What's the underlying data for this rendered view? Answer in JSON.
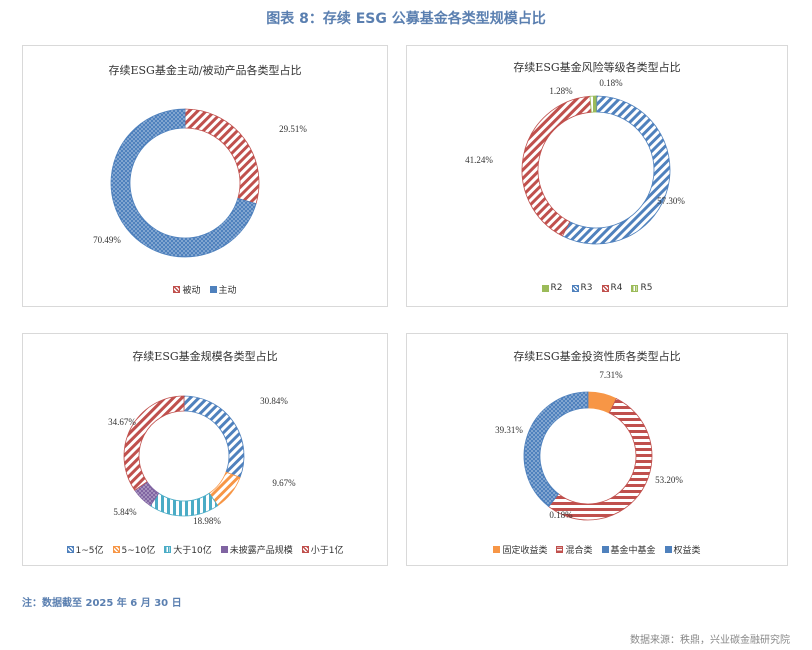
{
  "figure_title": "图表 8：存续 ESG 公募基金各类型规模占比",
  "note": "注：数据截至 2025 年 6 月 30 日",
  "source": "数据来源：秩鼎，兴业碳金融研究院",
  "colors": {
    "red": "#c0504d",
    "blue": "#4f81bd",
    "green": "#9bbb59",
    "purple": "#8064a2",
    "cyan": "#4bacc6",
    "orange": "#f79646"
  },
  "chart_data": [
    {
      "type": "pie",
      "variant": "donut",
      "title": "存续ESG基金主动/被动产品各类型占比",
      "legend_position": "bottom",
      "categories": [
        "被动",
        "主动"
      ],
      "values": [
        29.51,
        70.49
      ],
      "data_labels": [
        "29.51%",
        "70.49%"
      ],
      "colors": [
        "#c0504d",
        "#4f81bd"
      ],
      "patterns": [
        "diag",
        "dots"
      ]
    },
    {
      "type": "pie",
      "variant": "donut",
      "title": "存续ESG基金风险等级各类型占比",
      "legend_position": "bottom",
      "categories": [
        "R2",
        "R3",
        "R4",
        "R5"
      ],
      "values": [
        0.18,
        57.3,
        41.24,
        1.28
      ],
      "data_labels": [
        "0.18%",
        "57.30%",
        "41.24%",
        "1.28%"
      ],
      "colors": [
        "#9bbb59",
        "#4f81bd",
        "#c0504d",
        "#9bbb59"
      ],
      "patterns": [
        "solid",
        "diag",
        "diag",
        "vert"
      ]
    },
    {
      "type": "pie",
      "variant": "donut",
      "title": "存续ESG基金规模各类型占比",
      "legend_position": "bottom",
      "categories": [
        "1~5亿",
        "5~10亿",
        "大于10亿",
        "未披露产品规模",
        "小于1亿"
      ],
      "values": [
        30.84,
        9.67,
        18.98,
        5.84,
        34.67
      ],
      "data_labels": [
        "30.84%",
        "9.67%",
        "18.98%",
        "5.84%",
        "34.67%"
      ],
      "colors": [
        "#4f81bd",
        "#f79646",
        "#4bacc6",
        "#8064a2",
        "#c0504d"
      ],
      "patterns": [
        "diag",
        "diag",
        "vert",
        "dots",
        "diag"
      ]
    },
    {
      "type": "pie",
      "variant": "donut",
      "title": "存续ESG基金投资性质各类型占比",
      "legend_position": "bottom",
      "categories": [
        "固定收益类",
        "混合类",
        "基金中基金",
        "权益类"
      ],
      "values": [
        7.31,
        53.2,
        0.18,
        39.31
      ],
      "data_labels": [
        "7.31%",
        "53.20%",
        "0.18%",
        "39.31%"
      ],
      "colors": [
        "#f79646",
        "#c0504d",
        "#4f81bd",
        "#4f81bd"
      ],
      "patterns": [
        "solid",
        "horiz",
        "solid",
        "dots"
      ]
    }
  ]
}
